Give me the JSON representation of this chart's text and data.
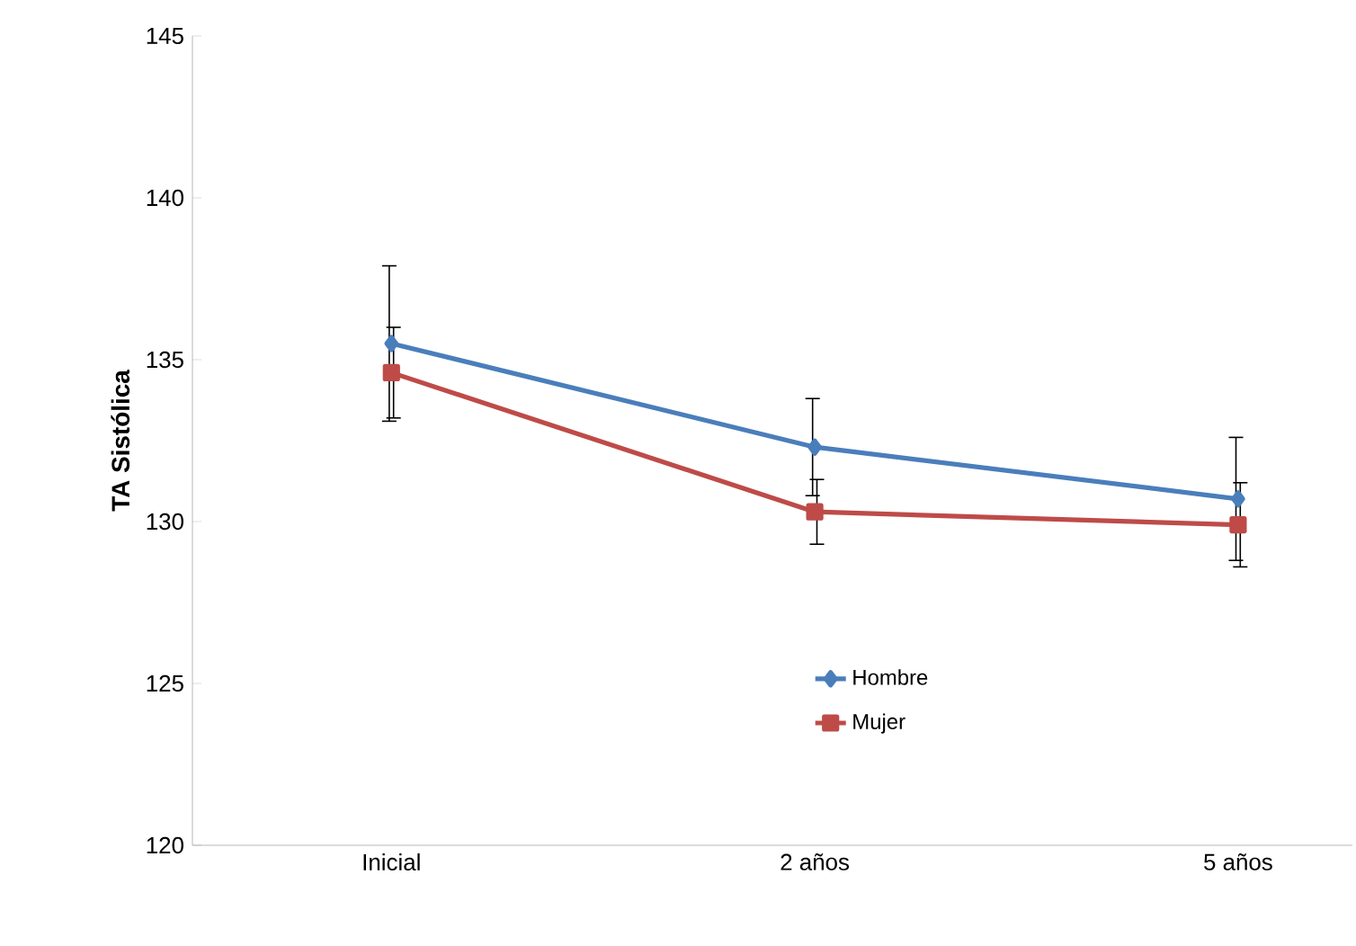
{
  "chart_data": {
    "type": "line",
    "ylabel": "TA Sistólica",
    "categories": [
      "Inicial",
      "2 años",
      "5 años"
    ],
    "series": [
      {
        "name": "Hombre",
        "color": "#4a7ebb",
        "marker": "diamond",
        "values": [
          135.5,
          132.3,
          130.7
        ],
        "errors": [
          2.4,
          1.5,
          1.9
        ]
      },
      {
        "name": "Mujer",
        "color": "#be4b48",
        "marker": "square",
        "values": [
          134.6,
          130.3,
          129.9
        ],
        "errors": [
          1.4,
          1.0,
          1.3
        ]
      }
    ],
    "ylim": [
      120,
      145
    ],
    "yticks": [
      120,
      125,
      130,
      135,
      140,
      145
    ],
    "grid": false,
    "legend": "center right"
  }
}
